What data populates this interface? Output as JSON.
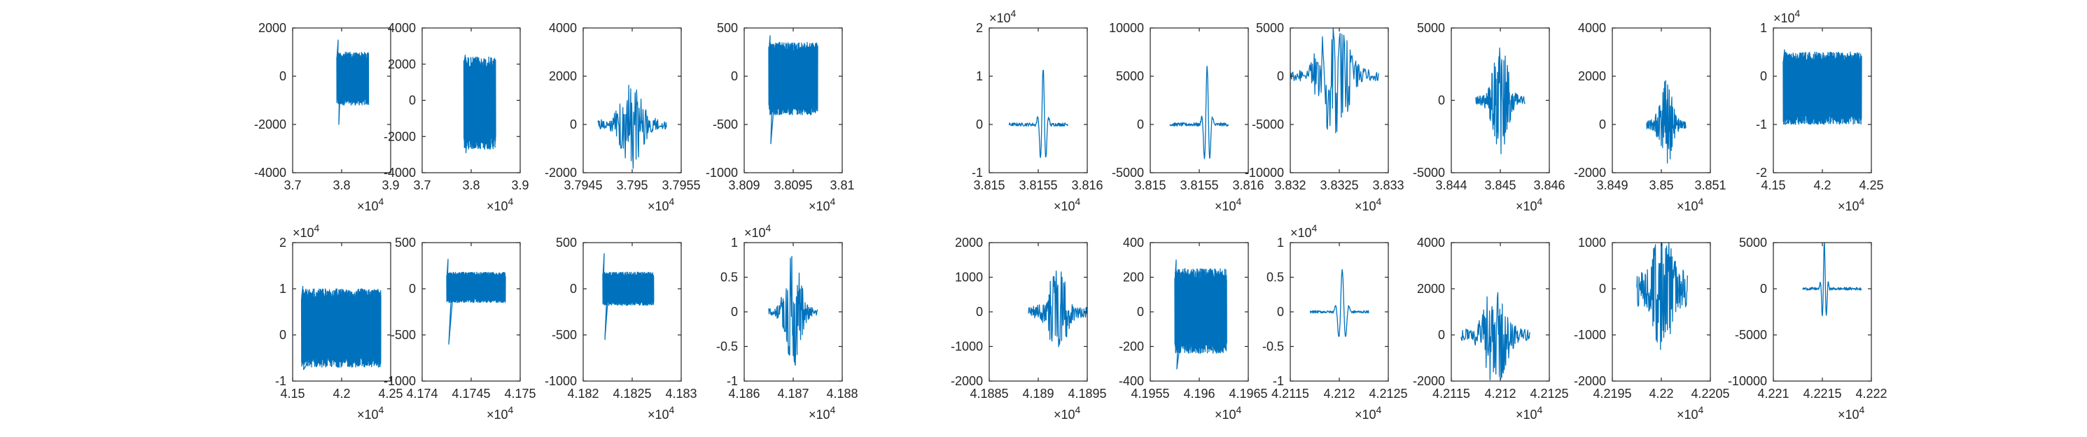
{
  "figure": {
    "background": "#ffffff",
    "axis_color": "#262626",
    "line_color": "#0072BD"
  },
  "chart_data": [
    {
      "type": "line",
      "style": "dense",
      "xlim": [
        3.7,
        3.9
      ],
      "xticks": [
        "3.7",
        "3.8",
        "3.9"
      ],
      "xexp": "4",
      "ylim": [
        -4000,
        2000
      ],
      "yticks": [
        "-4000",
        "-2000",
        "0",
        "2000"
      ],
      "yexp": "",
      "x_range": [
        3.79,
        3.855
      ],
      "y_band": [
        -1200,
        1000
      ],
      "y_peaks": [
        1500,
        -2000
      ]
    },
    {
      "type": "line",
      "style": "dense",
      "xlim": [
        3.7,
        3.9
      ],
      "xticks": [
        "3.7",
        "3.8",
        "3.9"
      ],
      "xexp": "4",
      "ylim": [
        -4000,
        4000
      ],
      "yticks": [
        "-4000",
        "-2000",
        "0",
        "2000",
        "4000"
      ],
      "yexp": "",
      "x_range": [
        3.785,
        3.85
      ],
      "y_band": [
        -2700,
        2400
      ],
      "y_peaks": [
        2500,
        -2900
      ]
    },
    {
      "type": "line",
      "style": "burst",
      "xlim": [
        3.7945,
        3.7955
      ],
      "xticks": [
        "3.7945",
        "3.795",
        "3.7955"
      ],
      "xexp": "4",
      "ylim": [
        -2000,
        4000
      ],
      "yticks": [
        "-2000",
        "0",
        "2000",
        "4000"
      ],
      "yexp": "",
      "x_range": [
        3.79465,
        3.79535
      ],
      "amp": 1900,
      "base": 0.1
    },
    {
      "type": "line",
      "style": "dense",
      "xlim": [
        3.809,
        3.81
      ],
      "xticks": [
        "3.809",
        "3.8095",
        "3.81"
      ],
      "xexp": "4",
      "ylim": [
        -1000,
        500
      ],
      "yticks": [
        "-1000",
        "-500",
        "0",
        "500"
      ],
      "yexp": "",
      "x_range": [
        3.80925,
        3.80975
      ],
      "y_band": [
        -400,
        350
      ],
      "y_peaks": [
        420,
        -700
      ]
    },
    {
      "type": "line",
      "style": "wavelet",
      "xlim": [
        3.815,
        3.816
      ],
      "xticks": [
        "3.815",
        "3.8155",
        "3.816"
      ],
      "xexp": "4",
      "ylim": [
        -1,
        2
      ],
      "yticks": [
        "-1",
        "0",
        "1",
        "2"
      ],
      "yexp": "4",
      "x_range": [
        3.8152,
        3.8158
      ],
      "amp": 1.15,
      "center": 3.81555,
      "width": 4e-05
    },
    {
      "type": "line",
      "style": "wavelet",
      "xlim": [
        3.815,
        3.816
      ],
      "xticks": [
        "3.815",
        "3.8155",
        "3.816"
      ],
      "xexp": "4",
      "ylim": [
        -5000,
        10000
      ],
      "yticks": [
        "-5000",
        "0",
        "5000",
        "10000"
      ],
      "yexp": "",
      "x_range": [
        3.8152,
        3.8158
      ],
      "amp": 6000,
      "center": 3.81558,
      "width": 4e-05
    },
    {
      "type": "line",
      "style": "burst",
      "xlim": [
        3.832,
        3.833
      ],
      "xticks": [
        "3.832",
        "3.8325",
        "3.833"
      ],
      "xexp": "4",
      "ylim": [
        -10000,
        5000
      ],
      "yticks": [
        "-10000",
        "-5000",
        "0",
        "5000"
      ],
      "yexp": "",
      "x_range": [
        3.832,
        3.8329
      ],
      "amp": 7000,
      "base": 0.07,
      "offset": 500
    },
    {
      "type": "line",
      "style": "burst",
      "xlim": [
        3.844,
        3.846
      ],
      "xticks": [
        "3.844",
        "3.845",
        "3.846"
      ],
      "xexp": "4",
      "ylim": [
        -5000,
        5000
      ],
      "yticks": [
        "-5000",
        "0",
        "5000"
      ],
      "yexp": "",
      "x_range": [
        3.8445,
        3.8455
      ],
      "amp": 4000,
      "base": 0.07
    },
    {
      "type": "line",
      "style": "burst",
      "xlim": [
        3.849,
        3.851
      ],
      "xticks": [
        "3.849",
        "3.85",
        "3.851"
      ],
      "xexp": "4",
      "ylim": [
        -2000,
        4000
      ],
      "yticks": [
        "-2000",
        "0",
        "2000",
        "4000"
      ],
      "yexp": "",
      "x_range": [
        3.8497,
        3.8505
      ],
      "amp": 1900,
      "base": 0.1
    },
    {
      "type": "line",
      "style": "dense",
      "xlim": [
        4.15,
        4.25
      ],
      "xticks": [
        "4.15",
        "4.2",
        "4.25"
      ],
      "xexp": "4",
      "ylim": [
        -2,
        1
      ],
      "yticks": [
        "-2",
        "-1",
        "0",
        "1"
      ],
      "yexp": "4",
      "x_range": [
        4.16,
        4.24
      ],
      "y_band": [
        -1.0,
        0.5
      ],
      "y_peaks": [
        0.55,
        -1.0
      ]
    },
    {
      "type": "line",
      "style": "dense",
      "xlim": [
        4.15,
        4.25
      ],
      "xticks": [
        "4.15",
        "4.2",
        "4.25"
      ],
      "xexp": "4",
      "ylim": [
        -1,
        2
      ],
      "yticks": [
        "-1",
        "0",
        "1",
        "2"
      ],
      "yexp": "4",
      "x_range": [
        4.159,
        4.24
      ],
      "y_band": [
        -0.7,
        1.0
      ],
      "y_peaks": [
        1.05,
        -0.75
      ]
    },
    {
      "type": "line",
      "style": "dense",
      "xlim": [
        4.174,
        4.175
      ],
      "xticks": [
        "4.174",
        "4.1745",
        "4.175"
      ],
      "xexp": "4",
      "ylim": [
        -1000,
        500
      ],
      "yticks": [
        "-1000",
        "-500",
        "0",
        "500"
      ],
      "yexp": "",
      "x_range": [
        4.17425,
        4.17485
      ],
      "y_band": [
        -150,
        180
      ],
      "y_peaks": [
        320,
        -600
      ]
    },
    {
      "type": "line",
      "style": "dense",
      "xlim": [
        4.182,
        4.183
      ],
      "xticks": [
        "4.182",
        "4.1825",
        "4.183"
      ],
      "xexp": "4",
      "ylim": [
        -1000,
        500
      ],
      "yticks": [
        "-1000",
        "-500",
        "0",
        "500"
      ],
      "yexp": "",
      "x_range": [
        4.1822,
        4.18272
      ],
      "y_band": [
        -180,
        180
      ],
      "y_peaks": [
        380,
        -550
      ]
    },
    {
      "type": "line",
      "style": "burst",
      "xlim": [
        4.186,
        4.188
      ],
      "xticks": [
        "4.186",
        "4.187",
        "4.188"
      ],
      "xexp": "4",
      "ylim": [
        -1,
        1
      ],
      "yticks": [
        "-1",
        "-0.5",
        "0",
        "0.5",
        "1"
      ],
      "yexp": "4",
      "x_range": [
        4.1865,
        4.1875
      ],
      "amp": 0.85,
      "base": 0.06
    },
    {
      "type": "line",
      "style": "burst",
      "xlim": [
        4.1885,
        4.1895
      ],
      "xticks": [
        "4.1885",
        "4.189",
        "4.1895"
      ],
      "xexp": "4",
      "ylim": [
        -2000,
        2000
      ],
      "yticks": [
        "-2000",
        "-1000",
        "0",
        "1000",
        "2000"
      ],
      "yexp": "",
      "x_range": [
        4.1889,
        4.1895
      ],
      "amp": 1300,
      "base": 0.12
    },
    {
      "type": "line",
      "style": "dense",
      "xlim": [
        4.1955,
        4.1965
      ],
      "xticks": [
        "4.1955",
        "4.196",
        "4.1965"
      ],
      "xexp": "4",
      "ylim": [
        -400,
        400
      ],
      "yticks": [
        "-400",
        "-200",
        "0",
        "200",
        "400"
      ],
      "yexp": "",
      "x_range": [
        4.19575,
        4.19628
      ],
      "y_band": [
        -240,
        250
      ],
      "y_peaks": [
        300,
        -330
      ]
    },
    {
      "type": "line",
      "style": "wavelet",
      "xlim": [
        4.2115,
        4.2125
      ],
      "xticks": [
        "4.2115",
        "4.212",
        "4.2125"
      ],
      "xexp": "4",
      "ylim": [
        -1,
        1
      ],
      "yticks": [
        "-1",
        "-0.5",
        "0",
        "0.5",
        "1"
      ],
      "yexp": "4",
      "x_range": [
        4.2117,
        4.2123
      ],
      "amp": 0.6,
      "center": 4.21203,
      "width": 5e-05
    },
    {
      "type": "line",
      "style": "burst",
      "xlim": [
        4.2115,
        4.2125
      ],
      "xticks": [
        "4.2115",
        "4.212",
        "4.2125"
      ],
      "xexp": "4",
      "ylim": [
        -2000,
        4000
      ],
      "yticks": [
        "-2000",
        "0",
        "2000",
        "4000"
      ],
      "yexp": "",
      "x_range": [
        4.2116,
        4.2123
      ],
      "amp": 2400,
      "base": 0.1
    },
    {
      "type": "line",
      "style": "burst",
      "xlim": [
        4.2195,
        4.2205
      ],
      "xticks": [
        "4.2195",
        "4.22",
        "4.2205"
      ],
      "xexp": "4",
      "ylim": [
        -2000,
        1000
      ],
      "yticks": [
        "-2000",
        "-1000",
        "0",
        "1000"
      ],
      "yexp": "",
      "x_range": [
        4.21975,
        4.22027
      ],
      "amp": 1600,
      "base": 0.25
    },
    {
      "type": "line",
      "style": "wavelet",
      "xlim": [
        4.221,
        4.222
      ],
      "xticks": [
        "4.221",
        "4.2215",
        "4.222"
      ],
      "xexp": "4",
      "ylim": [
        -10000,
        5000
      ],
      "yticks": [
        "-10000",
        "-5000",
        "0",
        "5000"
      ],
      "yexp": "",
      "x_range": [
        4.2213,
        4.2219
      ],
      "amp": 5000,
      "center": 4.22152,
      "width": 3e-05
    }
  ]
}
